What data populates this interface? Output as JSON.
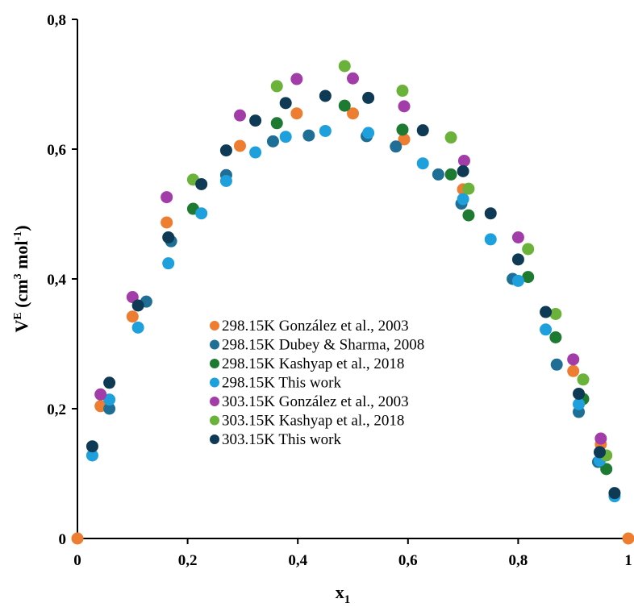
{
  "chart_data": {
    "type": "scatter",
    "title": "",
    "xlabel": {
      "main": "x",
      "sub": "1"
    },
    "ylabel": {
      "pre": "V",
      "sup1": "E",
      "mid": " (cm",
      "sup2": "3",
      "mid2": " mol",
      "sup3": "-1",
      "post": ")"
    },
    "xlim": [
      0,
      1
    ],
    "ylim": [
      0,
      0.8
    ],
    "x_ticks": [
      "0",
      "0,2",
      "0,4",
      "0,6",
      "0,8",
      "1"
    ],
    "x_tick_values": [
      0,
      0.2,
      0.4,
      0.6,
      0.8,
      1.0
    ],
    "y_ticks": [
      "0",
      "0,2",
      "0,4",
      "0,6",
      "0,8"
    ],
    "y_tick_values": [
      0,
      0.2,
      0.4,
      0.6,
      0.8
    ],
    "grid": false,
    "legend_position": "center-left",
    "series": [
      {
        "name": "298.15K González et al., 2003",
        "color": "#ED7D31",
        "points": [
          [
            0,
            0
          ],
          [
            0.042,
            0.204
          ],
          [
            0.1,
            0.342
          ],
          [
            0.162,
            0.487
          ],
          [
            0.295,
            0.605
          ],
          [
            0.398,
            0.655
          ],
          [
            0.5,
            0.655
          ],
          [
            0.593,
            0.615
          ],
          [
            0.7,
            0.538
          ],
          [
            0.9,
            0.258
          ],
          [
            0.95,
            0.145
          ],
          [
            1,
            0
          ]
        ]
      },
      {
        "name": "298.15K Dubey & Sharma, 2008",
        "color": "#1F6E96",
        "points": [
          [
            0.058,
            0.2
          ],
          [
            0.125,
            0.365
          ],
          [
            0.17,
            0.458
          ],
          [
            0.27,
            0.56
          ],
          [
            0.355,
            0.612
          ],
          [
            0.42,
            0.621
          ],
          [
            0.525,
            0.62
          ],
          [
            0.578,
            0.604
          ],
          [
            0.655,
            0.561
          ],
          [
            0.697,
            0.516
          ],
          [
            0.79,
            0.4
          ],
          [
            0.87,
            0.268
          ],
          [
            0.91,
            0.195
          ],
          [
            0.945,
            0.118
          ]
        ]
      },
      {
        "name": "298.15K Kashyap et al., 2018",
        "color": "#1E7A31",
        "points": [
          [
            0.21,
            0.508
          ],
          [
            0.362,
            0.64
          ],
          [
            0.485,
            0.667
          ],
          [
            0.59,
            0.63
          ],
          [
            0.678,
            0.561
          ],
          [
            0.71,
            0.498
          ],
          [
            0.818,
            0.403
          ],
          [
            0.868,
            0.31
          ],
          [
            0.918,
            0.215
          ],
          [
            0.96,
            0.107
          ]
        ]
      },
      {
        "name": "298.15K This work",
        "color": "#1EA0DC",
        "points": [
          [
            0.027,
            0.128
          ],
          [
            0.058,
            0.214
          ],
          [
            0.11,
            0.325
          ],
          [
            0.165,
            0.424
          ],
          [
            0.225,
            0.501
          ],
          [
            0.27,
            0.551
          ],
          [
            0.323,
            0.595
          ],
          [
            0.378,
            0.619
          ],
          [
            0.45,
            0.628
          ],
          [
            0.528,
            0.625
          ],
          [
            0.627,
            0.578
          ],
          [
            0.7,
            0.523
          ],
          [
            0.75,
            0.461
          ],
          [
            0.8,
            0.397
          ],
          [
            0.85,
            0.322
          ],
          [
            0.91,
            0.207
          ],
          [
            0.948,
            0.12
          ],
          [
            0.975,
            0.065
          ]
        ]
      },
      {
        "name": "303.15K González et al., 2003",
        "color": "#A23CA8",
        "points": [
          [
            0.042,
            0.222
          ],
          [
            0.1,
            0.372
          ],
          [
            0.162,
            0.526
          ],
          [
            0.295,
            0.652
          ],
          [
            0.398,
            0.708
          ],
          [
            0.5,
            0.709
          ],
          [
            0.593,
            0.666
          ],
          [
            0.702,
            0.582
          ],
          [
            0.8,
            0.464
          ],
          [
            0.9,
            0.276
          ],
          [
            0.95,
            0.154
          ]
        ]
      },
      {
        "name": "303.15K Kashyap et al., 2018",
        "color": "#6AB23A",
        "points": [
          [
            0.21,
            0.553
          ],
          [
            0.362,
            0.697
          ],
          [
            0.485,
            0.728
          ],
          [
            0.59,
            0.69
          ],
          [
            0.678,
            0.618
          ],
          [
            0.71,
            0.539
          ],
          [
            0.818,
            0.446
          ],
          [
            0.868,
            0.346
          ],
          [
            0.918,
            0.245
          ],
          [
            0.96,
            0.128
          ]
        ]
      },
      {
        "name": "303.15K This work",
        "color": "#0E3A56",
        "points": [
          [
            0.027,
            0.142
          ],
          [
            0.058,
            0.24
          ],
          [
            0.11,
            0.359
          ],
          [
            0.165,
            0.464
          ],
          [
            0.225,
            0.546
          ],
          [
            0.27,
            0.598
          ],
          [
            0.323,
            0.644
          ],
          [
            0.378,
            0.671
          ],
          [
            0.45,
            0.682
          ],
          [
            0.528,
            0.679
          ],
          [
            0.627,
            0.629
          ],
          [
            0.7,
            0.566
          ],
          [
            0.75,
            0.501
          ],
          [
            0.8,
            0.43
          ],
          [
            0.85,
            0.349
          ],
          [
            0.91,
            0.223
          ],
          [
            0.948,
            0.133
          ],
          [
            0.975,
            0.07
          ]
        ]
      }
    ]
  }
}
